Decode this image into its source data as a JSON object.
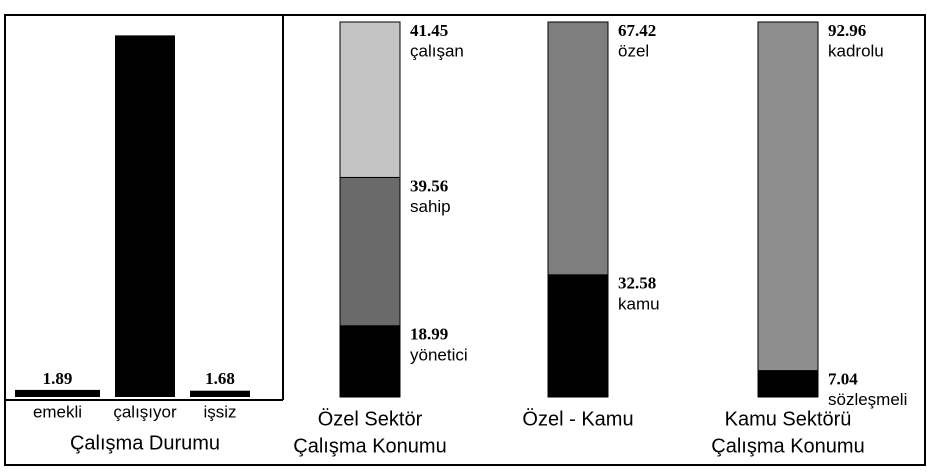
{
  "chart_data": [
    {
      "type": "bar",
      "title": "Çalışma Durumu",
      "categories": [
        "emekli",
        "çalışıyor",
        "işsiz"
      ],
      "values": [
        1.89,
        96.43,
        1.68
      ],
      "color": "#000000"
    },
    {
      "type": "stacked",
      "title": [
        "Özel Sektör",
        "Çalışma Konumu"
      ],
      "series": [
        {
          "name": "yönetici",
          "color": "#000000",
          "values": [
            18.99
          ]
        },
        {
          "name": "sahip",
          "color": "#6a6a6a",
          "values": [
            39.56
          ]
        },
        {
          "name": "çalışan",
          "color": "#c4c4c4",
          "values": [
            41.45
          ]
        }
      ]
    },
    {
      "type": "stacked",
      "title": "Özel - Kamu",
      "series": [
        {
          "name": "kamu",
          "color": "#000000",
          "values": [
            32.58
          ]
        },
        {
          "name": "özel",
          "color": "#7e7e7e",
          "values": [
            67.42
          ]
        }
      ]
    },
    {
      "type": "stacked",
      "title": [
        "Kamu Sektörü",
        "Çalışma Konumu"
      ],
      "series": [
        {
          "name": "sözleşmeli",
          "color": "#000000",
          "values": [
            7.04
          ]
        },
        {
          "name": "kadrolu",
          "color": "#8e8e8e",
          "values": [
            92.96
          ]
        }
      ]
    }
  ]
}
